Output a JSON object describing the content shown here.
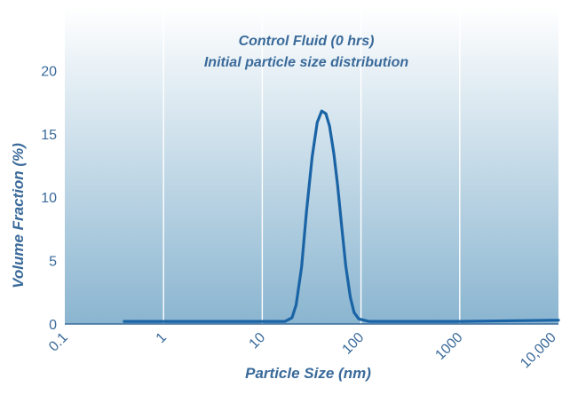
{
  "chart_data": {
    "type": "line",
    "title": "Control Fluid (0 hrs)",
    "subtitle": "Initial particle size distribution",
    "xlabel": "Particle Size (nm)",
    "ylabel": "Volume Fraction (%)",
    "x_scale": "log",
    "xlim": [
      0.1,
      10000
    ],
    "ylim": [
      0,
      25
    ],
    "x_ticks": [
      0.1,
      1,
      10,
      100,
      1000,
      10000
    ],
    "x_tick_labels": [
      "0.1",
      "1",
      "10",
      "100",
      "1000",
      "10,000"
    ],
    "y_ticks": [
      0,
      5,
      10,
      15,
      20
    ],
    "y_tick_labels": [
      "0",
      "5",
      "10",
      "15",
      "20"
    ],
    "grid": "vertical",
    "series": [
      {
        "color": "#1a64a6",
        "x": [
          0.4,
          1,
          10,
          17,
          20,
          22,
          25,
          28,
          32,
          36,
          40,
          44,
          48,
          53,
          58,
          64,
          70,
          78,
          85,
          95,
          120,
          1000,
          10000
        ],
        "y": [
          0.2,
          0.2,
          0.2,
          0.2,
          0.5,
          1.5,
          4.5,
          8.8,
          13.2,
          15.9,
          16.8,
          16.6,
          15.6,
          13.5,
          10.9,
          7.6,
          4.6,
          2.1,
          0.9,
          0.4,
          0.2,
          0.2,
          0.3
        ]
      }
    ]
  },
  "colors": {
    "label": "#3a6a9a",
    "title": "#3a6a9a",
    "axis": "#3a6a9a",
    "grid": "#ffffff",
    "line": "#1a64a6",
    "bg_top": "#ffffff",
    "bg_bottom": "#8ab5d0"
  }
}
